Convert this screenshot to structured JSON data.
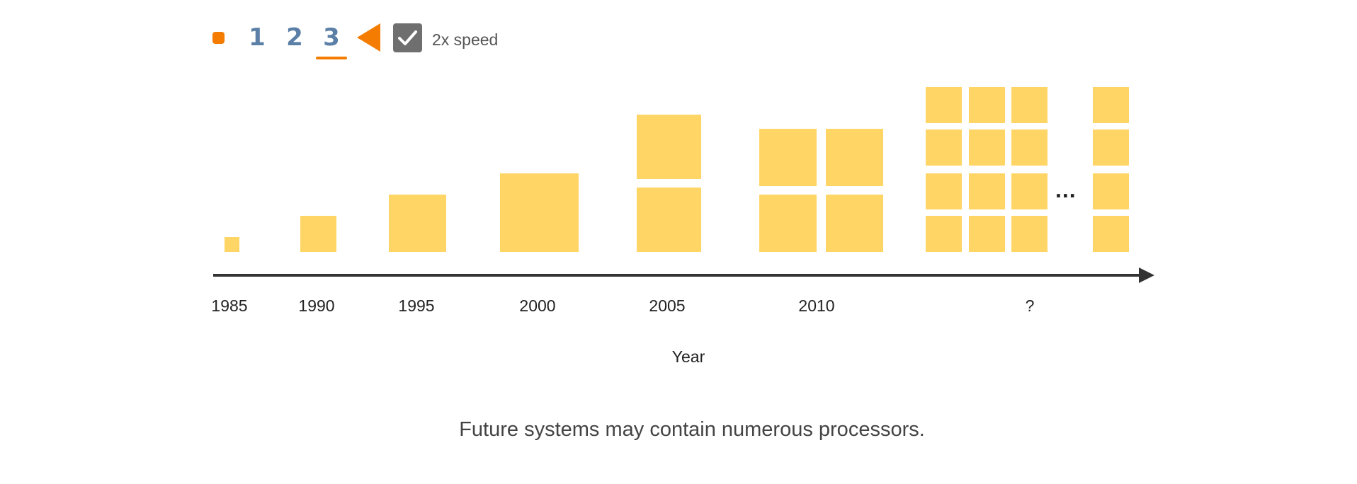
{
  "controls": {
    "steps": [
      "1",
      "2",
      "3"
    ],
    "active_step": "3",
    "speed_label": "2x speed",
    "speed_checked": true,
    "accent_color": "#f47c00",
    "step_color": "#5b7fa6"
  },
  "diagram": {
    "years": [
      "1985",
      "1990",
      "1995",
      "2000",
      "2005",
      "2010",
      "?"
    ],
    "ellipsis": "...",
    "axis_title": "Year",
    "chip_color": "#ffd565"
  },
  "caption": "Future systems may contain numerous processors."
}
